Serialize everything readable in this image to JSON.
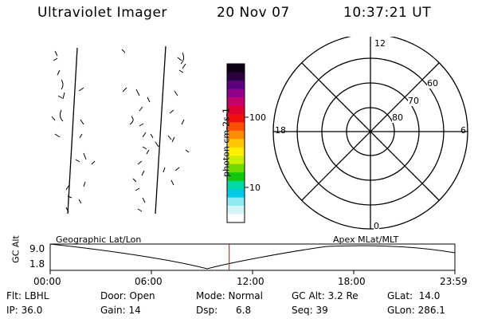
{
  "header": {
    "instrument": "Ultraviolet Imager",
    "date": "20 Nov 07",
    "time": "10:37:21 UT"
  },
  "colorbar": {
    "colors": [
      "#0b0016",
      "#2a0040",
      "#5a007a",
      "#90008a",
      "#c4006a",
      "#e00030",
      "#f01010",
      "#f85000",
      "#fb8c00",
      "#ffc800",
      "#fff000",
      "#c8f000",
      "#6edc00",
      "#10c810",
      "#00d8a8",
      "#00c8e6",
      "#90e8f0",
      "#d8f4f6",
      "#ffffff"
    ],
    "ticks": [
      "100",
      "10"
    ],
    "unit_label": "photon cm-2s-1"
  },
  "polar_plot": {
    "mlt_labels": {
      "top": "12",
      "left": "18",
      "right": "6",
      "bottom": "0"
    },
    "lat_labels": [
      "60",
      "70",
      "80"
    ]
  },
  "orbit": {
    "left_label": "Geographic Lat/Lon",
    "right_label": "Apex MLat/MLT",
    "y_label": "GC Alt",
    "y_ticks": [
      "9.0",
      "1.8"
    ],
    "time_ticks": [
      "00:00",
      "06:00",
      "12:00",
      "18:00",
      "23:59"
    ],
    "current_time_marker": "10:37",
    "marker_color": "#cc0000"
  },
  "status": {
    "flt": "Flt: LBHL",
    "door": "Door: Open",
    "mode": "Mode: Normal",
    "gc_alt": "GC Alt: 3.2 Re",
    "glat": "GLat:  14.0",
    "ip": "IP: 36.0",
    "gain": "Gain: 14",
    "dsp": "Dsp:      6.8",
    "seq": "Seq: 39",
    "glon": "GLon: 286.1"
  }
}
